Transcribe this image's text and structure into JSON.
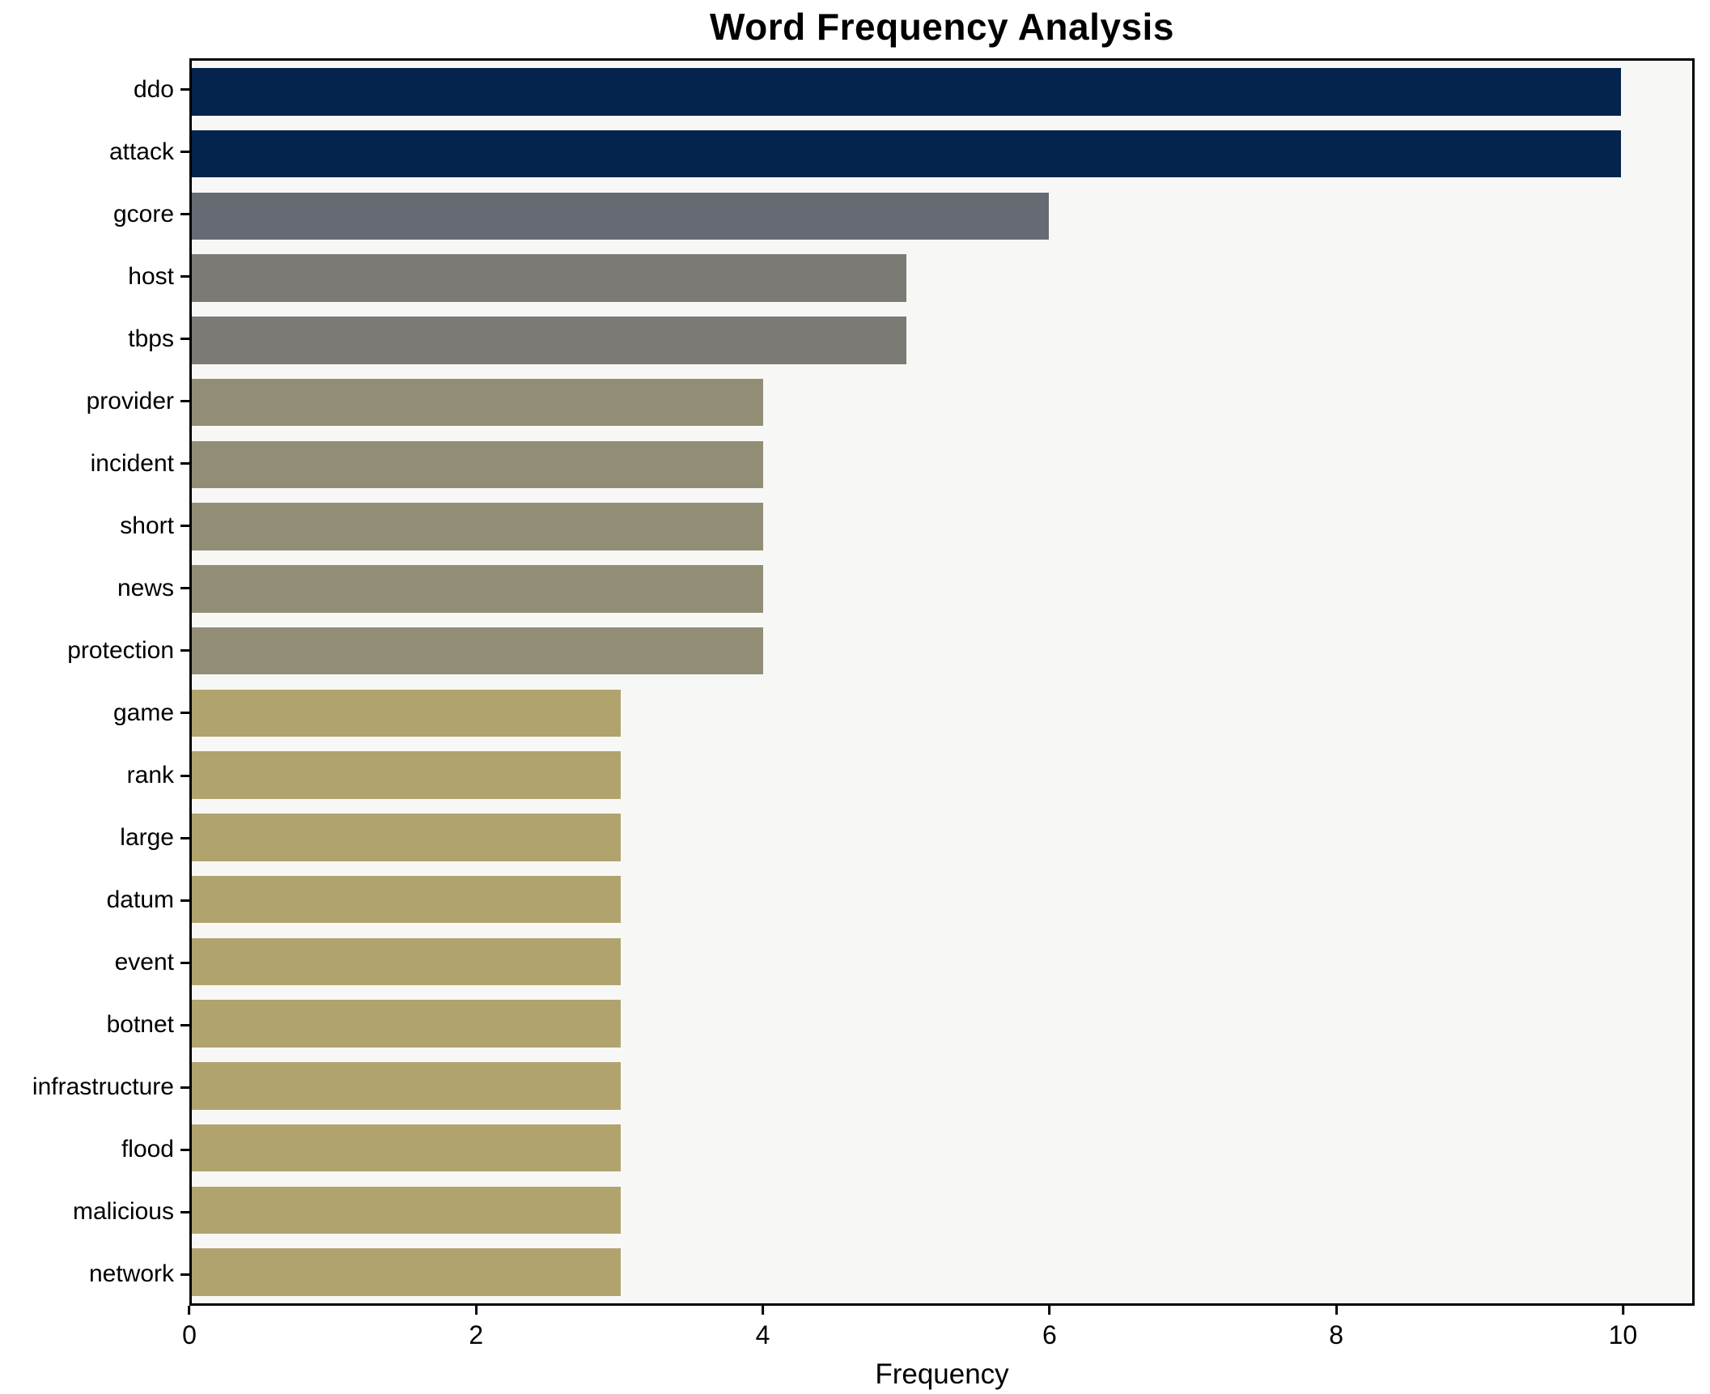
{
  "chart_data": {
    "type": "bar",
    "orientation": "horizontal",
    "title": "Word Frequency Analysis",
    "xlabel": "Frequency",
    "ylabel": "",
    "categories": [
      "ddo",
      "attack",
      "gcore",
      "host",
      "tbps",
      "provider",
      "incident",
      "short",
      "news",
      "protection",
      "game",
      "rank",
      "large",
      "datum",
      "event",
      "botnet",
      "infrastructure",
      "flood",
      "malicious",
      "network"
    ],
    "values": [
      10,
      10,
      6,
      5,
      5,
      4,
      4,
      4,
      4,
      4,
      3,
      3,
      3,
      3,
      3,
      3,
      3,
      3,
      3,
      3
    ],
    "bar_colors": [
      "#04234d",
      "#04234d",
      "#666b73",
      "#7b7a74",
      "#7b7a74",
      "#928d75",
      "#928d75",
      "#928d75",
      "#928d75",
      "#928d75",
      "#b0a36e",
      "#b0a36e",
      "#b0a36e",
      "#b0a36e",
      "#b0a36e",
      "#b0a36e",
      "#b0a36e",
      "#b0a36e",
      "#b0a36e",
      "#b0a36e"
    ],
    "xlim": [
      0,
      10.5
    ],
    "xticks": [
      0,
      2,
      4,
      6,
      8,
      10
    ],
    "grid": false,
    "legend": null,
    "plot_background": "#f7f7f5",
    "figure_background": "#ffffff",
    "spine_color": "#000000"
  }
}
